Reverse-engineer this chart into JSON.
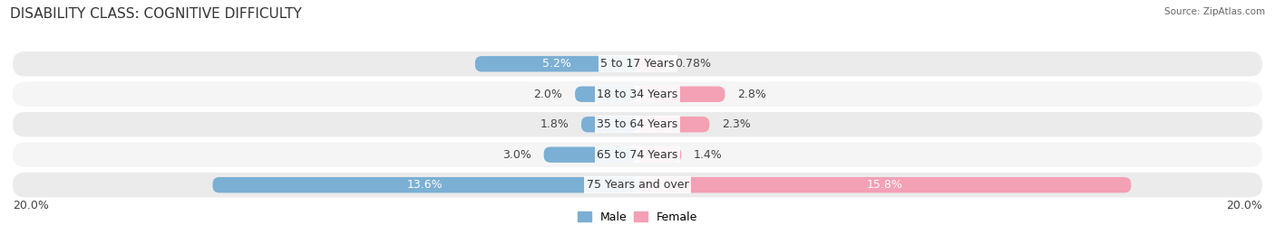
{
  "title": "DISABILITY CLASS: COGNITIVE DIFFICULTY",
  "source": "Source: ZipAtlas.com",
  "categories": [
    "5 to 17 Years",
    "18 to 34 Years",
    "35 to 64 Years",
    "65 to 74 Years",
    "75 Years and over"
  ],
  "male_values": [
    5.2,
    2.0,
    1.8,
    3.0,
    13.6
  ],
  "female_values": [
    0.78,
    2.8,
    2.3,
    1.4,
    15.8
  ],
  "male_labels": [
    "5.2%",
    "2.0%",
    "1.8%",
    "3.0%",
    "13.6%"
  ],
  "female_labels": [
    "0.78%",
    "2.8%",
    "2.3%",
    "1.4%",
    "15.8%"
  ],
  "male_color": "#7bafd4",
  "female_color": "#f4a0b5",
  "row_bg_colors": [
    "#ebebeb",
    "#f5f5f5",
    "#ebebeb",
    "#f5f5f5",
    "#ebebeb"
  ],
  "max_value": 20.0,
  "axis_label_left": "20.0%",
  "axis_label_right": "20.0%",
  "title_fontsize": 11,
  "label_fontsize": 9,
  "tick_fontsize": 9,
  "background_color": "#ffffff"
}
